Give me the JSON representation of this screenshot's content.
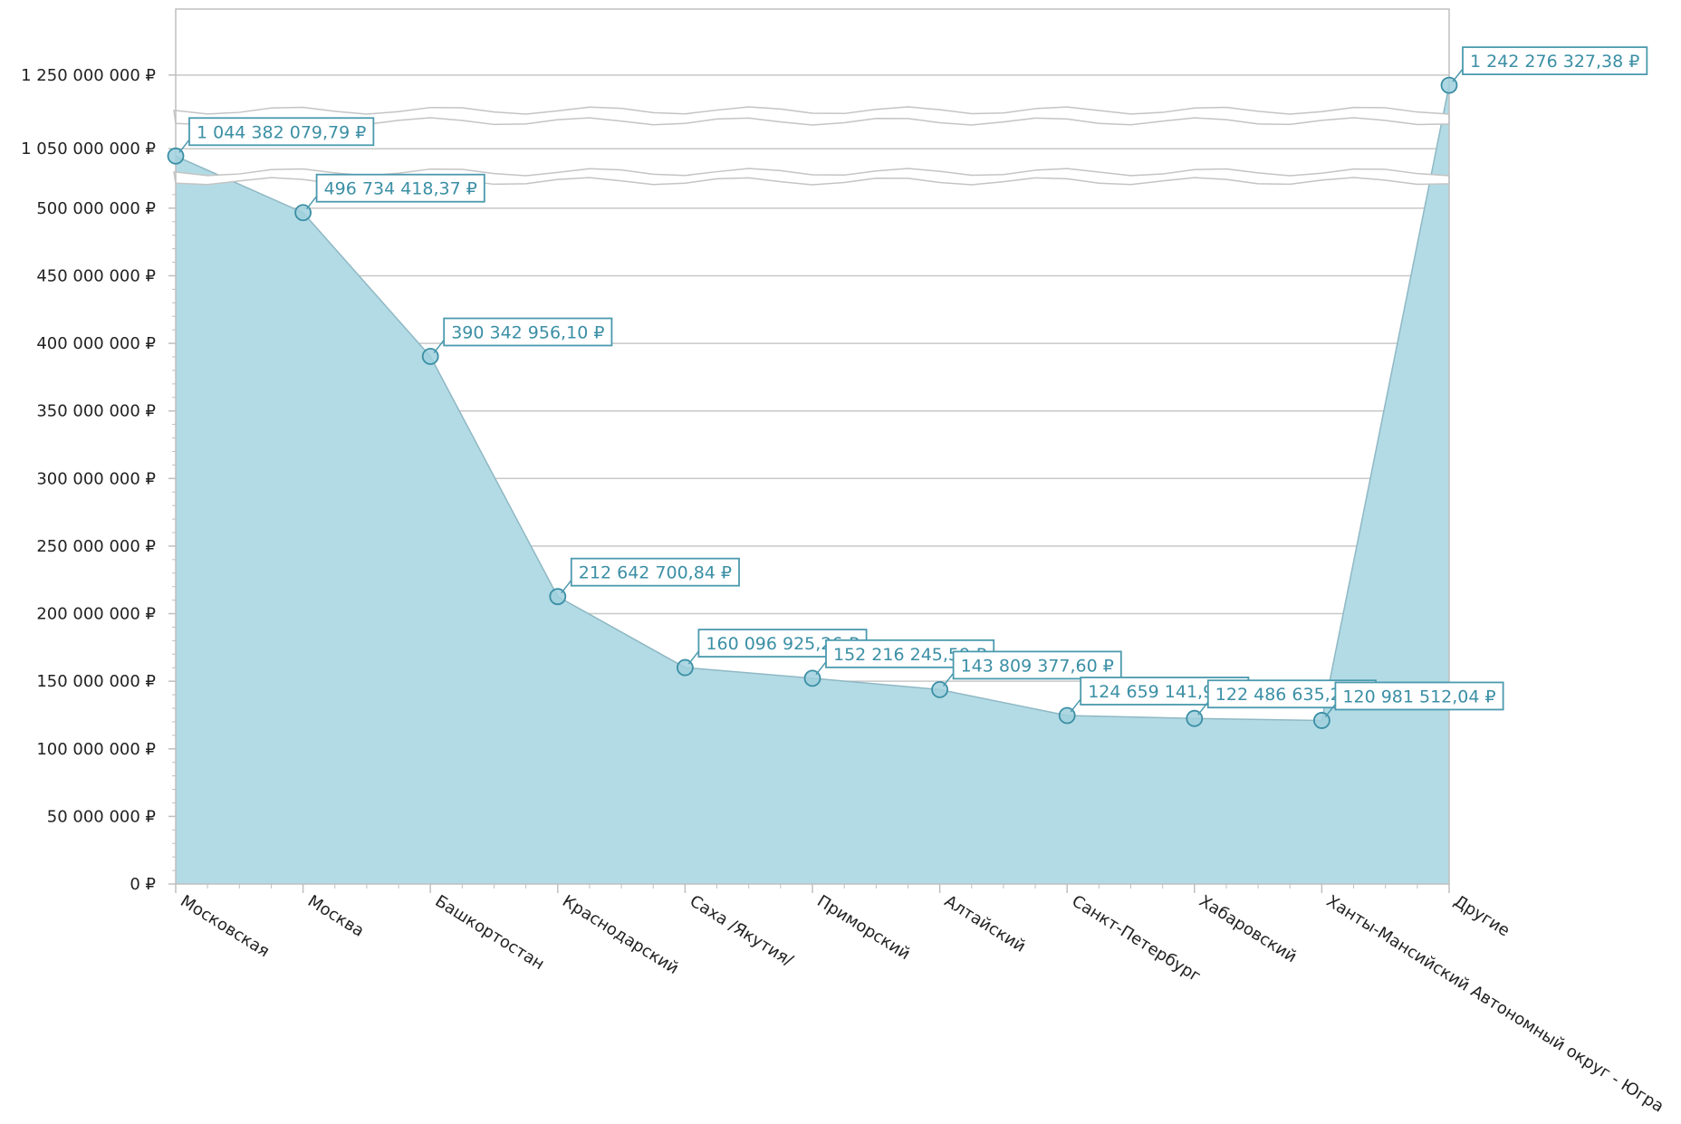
{
  "chart_data": {
    "type": "area",
    "categories": [
      "Московская",
      "Москва",
      "Башкортостан",
      "Краснодарский",
      "Саха /Якутия/",
      "Приморский",
      "Алтайский",
      "Санкт-Петербург",
      "Хабаровский",
      "Ханты-Мансийский Автономный округ - Югра",
      "Другие"
    ],
    "series": [
      {
        "values": [
          1044382079.79,
          496734418.37,
          390342956.1,
          212642700.84,
          160096925.26,
          152216245.59,
          143809377.6,
          124659141.9,
          122486635.2,
          120981512.04,
          1242276327.38
        ],
        "labels": [
          "1 044 382 079,79 ₽",
          "496 734 418,37 ₽",
          "390 342 956,10 ₽",
          "212 642 700,84 ₽",
          "160 096 925,26 ₽",
          "152 216 245,59 ₽",
          "143 809 377,60 ₽",
          "124 659 141,90 ₽",
          "122 486 635,20 ₽",
          "120 981 512,04 ₽",
          "1 242 276 327,38 ₽"
        ]
      }
    ],
    "y_ticks": [
      {
        "value": 0,
        "label": "0 ₽"
      },
      {
        "value": 50000000,
        "label": "50 000 000 ₽"
      },
      {
        "value": 100000000,
        "label": "100 000 000 ₽"
      },
      {
        "value": 150000000,
        "label": "150 000 000 ₽"
      },
      {
        "value": 200000000,
        "label": "200 000 000 ₽"
      },
      {
        "value": 250000000,
        "label": "250 000 000 ₽"
      },
      {
        "value": 300000000,
        "label": "300 000 000 ₽"
      },
      {
        "value": 350000000,
        "label": "350 000 000 ₽"
      },
      {
        "value": 400000000,
        "label": "400 000 000 ₽"
      },
      {
        "value": 450000000,
        "label": "450 000 000 ₽"
      },
      {
        "value": 500000000,
        "label": "500 000 000 ₽"
      },
      {
        "value": 1050000000,
        "label": "1 050 000 000 ₽"
      },
      {
        "value": 1250000000,
        "label": "1 250 000 000 ₽"
      }
    ],
    "scale_breaks": [
      [
        520000000,
        1030000000
      ],
      [
        1080000000,
        1230000000
      ]
    ],
    "grid": true,
    "legend": "none",
    "colors": {
      "area": "#b3dbe5",
      "line": "#8fb8c4",
      "marker": "#3b8fa5",
      "label_border": "#4b9aae",
      "label_text": "#3b8fa5",
      "grid": "#c8c8c8",
      "axis": "#bfbfbf"
    }
  }
}
